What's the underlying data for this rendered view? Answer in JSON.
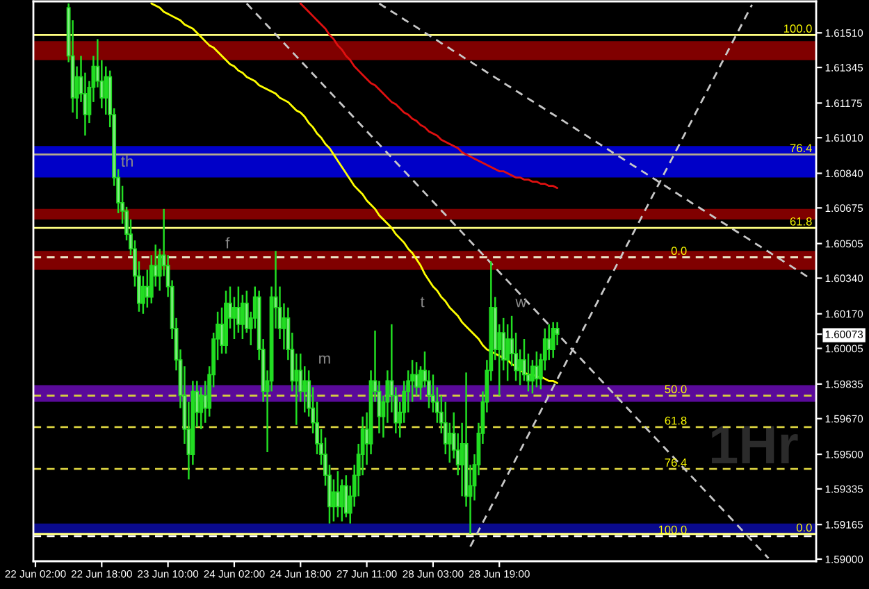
{
  "chart_data": {
    "type": "candlestick",
    "categories": [
      "22 Jun 02:00",
      null,
      null,
      null,
      null,
      null,
      null,
      null,
      null,
      null,
      null,
      null,
      null,
      null,
      null,
      null,
      "22 Jun 18:00",
      null,
      null,
      null,
      null,
      null,
      null,
      null,
      null,
      null,
      null,
      null,
      null,
      null,
      null,
      null,
      "23 Jun 10:00",
      null,
      null,
      null,
      null,
      null,
      null,
      null,
      null,
      null,
      null,
      null,
      null,
      null,
      null,
      null,
      "24 Jun 02:00",
      null,
      null,
      null,
      null,
      null,
      null,
      null,
      null,
      null,
      null,
      null,
      null,
      null,
      null,
      null,
      "24 Jun 18:00",
      null,
      null,
      null,
      null,
      null,
      null,
      null,
      null,
      null,
      null,
      null,
      null,
      null,
      null,
      null,
      "27 Jun 11:00",
      null,
      null,
      null,
      null,
      null,
      null,
      null,
      null,
      null,
      null,
      null,
      null,
      null,
      null,
      null,
      "28 Jun 03:00",
      null,
      null,
      null,
      null,
      null,
      null,
      null,
      null,
      null,
      null,
      null,
      null,
      null,
      null,
      null,
      "28 Jun 19:00",
      null,
      null,
      null,
      null,
      null,
      null,
      null,
      null,
      null,
      null,
      null,
      null,
      null,
      null,
      null,
      null,
      null,
      null,
      null,
      null,
      null,
      null,
      null,
      null,
      null,
      null,
      null,
      null,
      null,
      null,
      null,
      null,
      null,
      null,
      null,
      null,
      null,
      null,
      null,
      null,
      null,
      null,
      null,
      null,
      null,
      null,
      null,
      null,
      null,
      null,
      null,
      null,
      null,
      null,
      null,
      null,
      null,
      null,
      null,
      null,
      null,
      null,
      null,
      null,
      null,
      null,
      null,
      null,
      null,
      null,
      null,
      null,
      null,
      null,
      null,
      null
    ],
    "ylim": [
      1.5899,
      1.6166
    ],
    "yticks": [
      {
        "value": 1.6151,
        "label": "1.61510"
      },
      1.61345,
      1.61175,
      {
        "value": 1.6101,
        "label": "1.61010"
      },
      {
        "value": 1.6084,
        "label": "1.60840"
      },
      1.60675,
      1.60505,
      {
        "value": 1.6034,
        "label": "1.60340"
      },
      {
        "value": 1.6017,
        "label": "1.60170"
      },
      1.60073,
      1.60005,
      1.59835,
      {
        "value": 1.5967,
        "label": "1.59670"
      },
      {
        "value": 1.595,
        "label": "1.59500"
      },
      1.59335,
      1.59165,
      {
        "value": 1.59,
        "label": "1.59000"
      }
    ],
    "series": [
      {
        "color": "#22dd22",
        "ohlc": [
          null,
          null,
          null,
          null,
          null,
          null,
          null,
          null,
          [
            1.6163,
            1.6165,
            1.6137,
            1.614
          ],
          [
            1.614,
            1.6157,
            1.6113,
            1.612
          ],
          [
            1.612,
            1.6135,
            1.611,
            1.613
          ],
          [
            1.613,
            1.614,
            1.6118,
            1.6122
          ],
          [
            1.6122,
            1.6132,
            1.6102,
            1.6112
          ],
          [
            1.6112,
            1.6128,
            1.6108,
            1.6125
          ],
          [
            1.6125,
            1.614,
            1.6118,
            1.6135
          ],
          [
            1.6135,
            1.6148,
            1.6125,
            1.6128
          ],
          [
            1.6128,
            1.6138,
            1.6115,
            1.612
          ],
          [
            1.612,
            1.6135,
            1.6112,
            1.613
          ],
          [
            1.613,
            1.6133,
            1.6106,
            1.6112
          ],
          [
            1.6112,
            1.6115,
            1.6078,
            1.6082
          ],
          [
            1.6082,
            1.6086,
            1.6065,
            1.607
          ],
          [
            1.607,
            1.6078,
            1.606,
            1.6066
          ],
          [
            1.6066,
            1.6068,
            1.6052,
            1.6055
          ],
          [
            1.6055,
            1.6062,
            1.6045,
            1.6048
          ],
          [
            1.6048,
            1.6052,
            1.603,
            1.6035
          ],
          [
            1.6035,
            1.6042,
            1.6018,
            1.6022
          ],
          [
            1.6022,
            1.6035,
            1.6017,
            1.603
          ],
          [
            1.603,
            1.6038,
            1.602,
            1.6025
          ],
          [
            1.6025,
            1.6045,
            1.6022,
            1.604
          ],
          [
            1.604,
            1.605,
            1.603,
            1.6035
          ],
          [
            1.6035,
            1.6048,
            1.6028,
            1.6045
          ],
          [
            1.6045,
            1.6067,
            1.6035,
            1.604
          ],
          [
            1.604,
            1.6045,
            1.6025,
            1.603
          ],
          [
            1.603,
            1.6033,
            1.6005,
            1.601
          ],
          [
            1.601,
            1.6015,
            1.599,
            1.5995
          ],
          [
            1.5995,
            1.6,
            1.5972,
            1.5978
          ],
          [
            1.5978,
            1.5992,
            1.5955,
            1.5962
          ],
          [
            1.5962,
            1.5975,
            1.5938,
            1.595
          ],
          [
            1.595,
            1.5985,
            1.5945,
            1.598
          ],
          [
            1.598,
            1.5985,
            1.5963,
            1.597
          ],
          [
            1.597,
            1.5982,
            1.5962,
            1.5978
          ],
          [
            1.5978,
            1.5985,
            1.5965,
            1.5972
          ],
          [
            1.5972,
            1.5992,
            1.5968,
            1.5988
          ],
          [
            1.5988,
            1.6008,
            1.5982,
            1.6005
          ],
          [
            1.6005,
            1.6018,
            1.5995,
            1.6012
          ],
          [
            1.6012,
            1.602,
            1.5998,
            1.6002
          ],
          [
            1.6002,
            1.6028,
            1.5998,
            1.6022
          ],
          [
            1.6022,
            1.603,
            1.601,
            1.6015
          ],
          [
            1.6015,
            1.6025,
            1.6005,
            1.602
          ],
          [
            1.602,
            1.603,
            1.6008,
            1.6012
          ],
          [
            1.6012,
            1.6026,
            1.6005,
            1.6022
          ],
          [
            1.6022,
            1.6028,
            1.6008,
            1.601
          ],
          [
            1.601,
            1.6018,
            1.6002,
            1.6015
          ],
          [
            1.6015,
            1.603,
            1.601,
            1.6025
          ],
          [
            1.6025,
            1.6028,
            1.5995,
            1.6
          ],
          [
            1.6,
            1.6005,
            1.5975,
            1.598
          ],
          [
            1.598,
            1.599,
            1.5951,
            1.5985
          ],
          [
            1.5985,
            1.603,
            1.598,
            1.6025
          ],
          [
            1.6025,
            1.6047,
            1.601,
            1.602
          ],
          [
            1.602,
            1.603,
            1.6005,
            1.601
          ],
          [
            1.601,
            1.6022,
            1.6,
            1.6015
          ],
          [
            1.6015,
            1.602,
            1.5995,
            1.6
          ],
          [
            1.6,
            1.6008,
            1.598,
            1.5985
          ],
          [
            1.5985,
            1.5998,
            1.5964,
            1.599
          ],
          [
            1.599,
            1.5998,
            1.5975,
            1.598
          ],
          [
            1.598,
            1.5992,
            1.597,
            1.5985
          ],
          [
            1.5985,
            1.599,
            1.5968,
            1.5972
          ],
          [
            1.5972,
            1.5982,
            1.596,
            1.5965
          ],
          [
            1.5965,
            1.5975,
            1.595,
            1.5955
          ],
          [
            1.5955,
            1.5962,
            1.5945,
            1.595
          ],
          [
            1.595,
            1.5958,
            1.5935,
            1.594
          ],
          [
            1.594,
            1.5945,
            1.5917,
            1.5925
          ],
          [
            1.5925,
            1.5938,
            1.5918,
            1.5932
          ],
          [
            1.5932,
            1.5942,
            1.592,
            1.5925
          ],
          [
            1.5925,
            1.5938,
            1.5918,
            1.5935
          ],
          [
            1.5935,
            1.594,
            1.592,
            1.5922
          ],
          [
            1.5922,
            1.5935,
            1.5917,
            1.593
          ],
          [
            1.593,
            1.5945,
            1.5925,
            1.594
          ],
          [
            1.594,
            1.5955,
            1.593,
            1.595
          ],
          [
            1.595,
            1.5968,
            1.594,
            1.5962
          ],
          [
            1.5962,
            1.597,
            1.5945,
            1.5955
          ],
          [
            1.5955,
            1.599,
            1.595,
            1.5985
          ],
          [
            1.5985,
            1.6009,
            1.5975,
            1.598
          ],
          [
            1.598,
            1.5985,
            1.596,
            1.5968
          ],
          [
            1.5968,
            1.5978,
            1.5958,
            1.5975
          ],
          [
            1.5975,
            1.599,
            1.5965,
            1.5985
          ],
          [
            1.5985,
            1.6012,
            1.597,
            1.5978
          ],
          [
            1.5978,
            1.5982,
            1.596,
            1.5965
          ],
          [
            1.5965,
            1.5975,
            1.5958,
            1.597
          ],
          [
            1.597,
            1.5985,
            1.5965,
            1.598
          ],
          [
            1.598,
            1.599,
            1.597,
            1.5985
          ],
          [
            1.5985,
            1.5995,
            1.5975,
            1.5988
          ],
          [
            1.5988,
            1.5994,
            1.5978,
            1.5982
          ],
          [
            1.5982,
            1.5992,
            1.5976,
            1.599
          ],
          [
            1.599,
            1.5999,
            1.5982,
            1.5985
          ],
          [
            1.5985,
            1.599,
            1.5972,
            1.5978
          ],
          [
            1.5978,
            1.5988,
            1.597,
            1.5975
          ],
          [
            1.5975,
            1.5982,
            1.5965,
            1.597
          ],
          [
            1.597,
            1.5978,
            1.596,
            1.5965
          ],
          [
            1.5965,
            1.5975,
            1.595,
            1.5955
          ],
          [
            1.5955,
            1.5965,
            1.5946,
            1.596
          ],
          [
            1.596,
            1.597,
            1.5948,
            1.5952
          ],
          [
            1.5952,
            1.596,
            1.594,
            1.5945
          ],
          [
            1.5945,
            1.5965,
            1.593,
            1.5955
          ],
          [
            1.5955,
            1.5989,
            1.5925,
            1.593
          ],
          [
            1.593,
            1.5945,
            1.5912,
            1.5935
          ],
          [
            1.5935,
            1.595,
            1.5928,
            1.5945
          ],
          [
            1.5945,
            1.5965,
            1.594,
            1.596
          ],
          [
            1.596,
            1.598,
            1.5955,
            1.5975
          ],
          [
            1.5975,
            1.5995,
            1.597,
            1.599
          ],
          [
            1.599,
            1.6042,
            1.5985,
            1.602
          ],
          [
            1.602,
            1.6025,
            1.5995,
            1.6
          ],
          [
            1.6,
            1.6012,
            1.5978,
            1.6008
          ],
          [
            1.6008,
            1.6015,
            1.599,
            1.5995
          ],
          [
            1.5995,
            1.6012,
            1.5985,
            1.6005
          ],
          [
            1.6005,
            1.6016,
            1.5992,
            1.5998
          ],
          [
            1.5998,
            1.6008,
            1.5985,
            1.599
          ],
          [
            1.599,
            1.6,
            1.5983,
            1.5995
          ],
          [
            1.5995,
            1.6005,
            1.5985,
            1.5988
          ],
          [
            1.5988,
            1.5998,
            1.598,
            1.5985
          ],
          [
            1.5985,
            1.5995,
            1.5979,
            1.5992
          ],
          [
            1.5992,
            1.5999,
            1.5982,
            1.5986
          ],
          [
            1.5986,
            1.5998,
            1.5981,
            1.5995
          ],
          [
            1.5995,
            1.601,
            1.599,
            1.6005
          ],
          [
            1.6005,
            1.6012,
            1.5995,
            1.6
          ],
          [
            1.6,
            1.6013,
            1.5996,
            1.601
          ],
          [
            1.601,
            1.6013,
            1.6002,
            1.60073
          ],
          null,
          null,
          null,
          null,
          null,
          null,
          null,
          null,
          null,
          null,
          null,
          null,
          null,
          null,
          null,
          null,
          null,
          null,
          null,
          null,
          null,
          null,
          null,
          null,
          null,
          null,
          null,
          null,
          null,
          null,
          null,
          null,
          null,
          null,
          null,
          null,
          null,
          null,
          null,
          null,
          null,
          null,
          null,
          null,
          null,
          null,
          null,
          null,
          null,
          null,
          null,
          null,
          null,
          null,
          null,
          null,
          null,
          null,
          null,
          null,
          null,
          null
        ]
      },
      {
        "type": "line",
        "color": "#ffff00",
        "values": [
          null,
          null,
          null,
          null,
          null,
          null,
          null,
          null,
          null,
          null,
          null,
          null,
          null,
          null,
          null,
          null,
          null,
          null,
          null,
          null,
          null,
          null,
          null,
          null,
          null,
          null,
          null,
          null,
          1.6165,
          1.6164,
          1.6163,
          1.6161,
          1.616,
          1.6159,
          1.6158,
          1.6157,
          1.6155,
          1.6154,
          1.6153,
          1.6151,
          1.6149,
          1.6147,
          1.6145,
          1.6144,
          1.6142,
          1.614,
          1.6138,
          1.6136,
          1.6135,
          1.6133,
          1.6132,
          1.613,
          1.6129,
          1.6128,
          1.6126,
          1.6125,
          1.6124,
          1.6123,
          1.6122,
          1.612,
          1.6119,
          1.6118,
          1.6116,
          1.6114,
          1.6113,
          1.6111,
          1.6108,
          1.6106,
          1.6103,
          1.6101,
          1.6098,
          1.6096,
          1.6093,
          1.609,
          1.6087,
          1.6084,
          1.6081,
          1.6078,
          1.6076,
          1.6074,
          1.6071,
          1.6069,
          1.6067,
          1.6064,
          1.6062,
          1.606,
          1.6058,
          1.6055,
          1.6053,
          1.6051,
          1.6048,
          1.6046,
          1.6043,
          1.604,
          1.6036,
          1.6033,
          1.603,
          1.6028,
          1.6025,
          1.6023,
          1.602,
          1.6018,
          1.6016,
          1.6013,
          1.6011,
          1.6009,
          1.6007,
          1.6005,
          1.6002,
          1.6,
          1.5999,
          1.5998,
          1.5997,
          1.5996,
          1.5995,
          1.5993,
          1.5992,
          1.599,
          1.5989,
          1.5988,
          1.5988,
          1.5987,
          1.5987,
          1.5986,
          1.5985,
          1.5985,
          1.5984,
          null,
          null,
          null,
          null,
          null,
          null,
          null,
          null,
          null,
          null,
          null,
          null,
          null,
          null,
          null,
          null,
          null,
          null,
          null,
          null,
          null,
          null,
          null,
          null,
          null,
          null,
          null,
          null,
          null,
          null,
          null,
          null,
          null,
          null,
          null,
          null,
          null,
          null,
          null,
          null,
          null,
          null,
          null,
          null,
          null,
          null,
          null,
          null,
          null,
          null,
          null,
          null,
          null,
          null,
          null,
          null,
          null,
          null,
          null,
          null,
          null,
          null
        ]
      },
      {
        "type": "line",
        "color": "#e01010",
        "values": [
          null,
          null,
          null,
          null,
          null,
          null,
          null,
          null,
          null,
          null,
          null,
          null,
          null,
          null,
          null,
          null,
          null,
          null,
          null,
          null,
          null,
          null,
          null,
          null,
          null,
          null,
          null,
          null,
          null,
          null,
          null,
          null,
          null,
          null,
          null,
          null,
          null,
          null,
          null,
          null,
          null,
          null,
          null,
          null,
          null,
          null,
          null,
          null,
          null,
          null,
          null,
          null,
          null,
          null,
          null,
          null,
          null,
          null,
          null,
          null,
          null,
          null,
          null,
          null,
          1.6165,
          1.6163,
          1.6161,
          1.6159,
          1.6157,
          1.6155,
          1.6153,
          1.615,
          1.6148,
          1.6145,
          1.6143,
          1.614,
          1.6138,
          1.6135,
          1.6133,
          1.6131,
          1.6129,
          1.6127,
          1.6126,
          1.6124,
          1.6122,
          1.612,
          1.6118,
          1.6117,
          1.6115,
          1.6113,
          1.6112,
          1.611,
          1.6109,
          1.6107,
          1.6106,
          1.6104,
          1.6103,
          1.6102,
          1.61,
          1.6099,
          1.6098,
          1.6097,
          1.6096,
          1.6094,
          1.6093,
          1.6092,
          1.6091,
          1.609,
          1.6089,
          1.6088,
          1.6087,
          1.6086,
          1.6085,
          1.6085,
          1.6084,
          1.6083,
          1.6082,
          1.6082,
          1.6081,
          1.6081,
          1.608,
          1.608,
          1.6079,
          1.6079,
          1.6078,
          1.6078,
          1.6077,
          null,
          null,
          null,
          null,
          null,
          null,
          null,
          null,
          null,
          null,
          null,
          null,
          null,
          null,
          null,
          null,
          null,
          null,
          null,
          null,
          null,
          null,
          null,
          null,
          null,
          null,
          null,
          null,
          null,
          null,
          null,
          null,
          null,
          null,
          null,
          null,
          null,
          null,
          null,
          null,
          null,
          null,
          null,
          null,
          null,
          null,
          null,
          null,
          null,
          null,
          null,
          null,
          null,
          null,
          null,
          null,
          null,
          null,
          null,
          null,
          null,
          null
        ]
      },
      {
        "type": "line",
        "color": "#c8c8c8",
        "line_style": "dashed",
        "values": [
          null,
          null,
          null,
          null,
          null,
          null,
          null,
          null,
          null,
          null,
          null,
          null,
          null,
          null,
          null,
          null,
          null,
          null,
          null,
          null,
          null,
          null,
          null,
          null,
          null,
          null,
          null,
          null,
          null,
          null,
          null,
          null,
          null,
          null,
          null,
          null,
          null,
          null,
          null,
          null,
          null,
          null,
          null,
          null,
          null,
          null,
          null,
          null,
          null,
          null,
          null,
          1.6165,
          1.61629,
          1.61608,
          1.61587,
          1.61566,
          1.61545,
          1.61524,
          1.61503,
          1.61482,
          1.61461,
          1.6144,
          1.61419,
          1.61398,
          1.61377,
          1.61356,
          1.61335,
          1.61314,
          1.61293,
          1.61272,
          1.61251,
          1.6123,
          1.61209,
          1.61188,
          1.61167,
          1.61146,
          1.61125,
          1.61104,
          1.61083,
          1.61062,
          1.61041,
          1.6102,
          1.60999,
          1.60978,
          1.60957,
          1.60936,
          1.60915,
          1.60894,
          1.60873,
          1.60852,
          1.60831,
          1.6081,
          1.60789,
          1.60768,
          1.60747,
          1.60726,
          1.60705,
          1.60684,
          1.60663,
          1.60642,
          1.60621,
          1.606,
          1.60579,
          1.60558,
          1.60537,
          1.60516,
          1.60495,
          1.60474,
          1.60453,
          1.60432,
          1.60411,
          1.6039,
          1.60369,
          1.60348,
          1.60327,
          1.60306,
          1.60285,
          1.60264,
          1.60243,
          1.60222,
          1.60201,
          1.6018,
          1.60159,
          1.60138,
          1.60117,
          1.60096,
          1.60075,
          1.60054,
          1.60033,
          1.60012,
          1.59991,
          1.5997,
          1.59949,
          1.59928,
          1.59907,
          1.59886,
          1.59865,
          1.59844,
          1.59823,
          1.59802,
          1.59781,
          1.5976,
          1.59739,
          1.59718,
          1.59697,
          1.59676,
          1.59655,
          1.59634,
          1.59613,
          1.59592,
          1.59571,
          1.5955,
          1.59529,
          1.59508,
          1.59487,
          1.59466,
          1.59445,
          1.59424,
          1.59403,
          1.59382,
          1.59361,
          1.5934,
          1.59319,
          1.59298,
          1.59277,
          1.59256,
          1.59235,
          1.59214,
          1.59193,
          1.59172,
          1.59151,
          1.5913,
          1.59109,
          1.59088,
          1.59067,
          1.59046,
          1.59025,
          1.59004,
          null,
          null,
          null,
          null,
          null,
          null,
          null,
          null,
          null,
          null,
          null
        ]
      },
      {
        "type": "line",
        "color": "#c8c8c8",
        "line_style": "dashed",
        "values": [
          null,
          null,
          null,
          null,
          null,
          null,
          null,
          null,
          null,
          null,
          null,
          null,
          null,
          null,
          null,
          null,
          null,
          null,
          null,
          null,
          null,
          null,
          null,
          null,
          null,
          null,
          null,
          null,
          null,
          null,
          null,
          null,
          null,
          null,
          null,
          null,
          null,
          null,
          null,
          null,
          null,
          null,
          null,
          null,
          null,
          null,
          null,
          null,
          null,
          null,
          null,
          null,
          null,
          null,
          null,
          null,
          null,
          null,
          null,
          null,
          null,
          null,
          null,
          null,
          null,
          null,
          null,
          null,
          null,
          null,
          null,
          null,
          null,
          null,
          null,
          null,
          null,
          null,
          null,
          null,
          null,
          null,
          null,
          1.6165,
          1.61637,
          1.61625,
          1.61612,
          1.616,
          1.61587,
          1.61574,
          1.61562,
          1.61549,
          1.61537,
          1.61524,
          1.61511,
          1.61499,
          1.61486,
          1.61474,
          1.61461,
          1.61448,
          1.61436,
          1.61423,
          1.61411,
          1.61398,
          1.61385,
          1.61373,
          1.6136,
          1.61348,
          1.61335,
          1.61322,
          1.6131,
          1.61297,
          1.61285,
          1.61272,
          1.61259,
          1.61247,
          1.61234,
          1.61222,
          1.61209,
          1.61196,
          1.61184,
          1.61171,
          1.61159,
          1.61146,
          1.61133,
          1.61121,
          1.61108,
          1.61096,
          1.61083,
          1.6107,
          1.61058,
          1.61045,
          1.61033,
          1.6102,
          1.61007,
          1.60995,
          1.60982,
          1.6097,
          1.60957,
          1.60944,
          1.60932,
          1.60919,
          1.60907,
          1.60894,
          1.60881,
          1.60869,
          1.60856,
          1.60844,
          1.60831,
          1.60818,
          1.60806,
          1.60793,
          1.60781,
          1.60768,
          1.60755,
          1.60743,
          1.6073,
          1.60718,
          1.60705,
          1.60692,
          1.6068,
          1.60667,
          1.60655,
          1.60642,
          1.60629,
          1.60617,
          1.60604,
          1.60592,
          1.60579,
          1.60566,
          1.60554,
          1.60541,
          1.60529,
          1.60516,
          1.60503,
          1.60491,
          1.60478,
          1.60466,
          1.60453,
          1.6044,
          1.60428,
          1.60415,
          1.60403,
          1.6039,
          1.60377,
          1.60365,
          1.60352,
          1.6034,
          null
        ]
      },
      {
        "type": "line",
        "color": "#c8c8c8",
        "line_style": "dashed",
        "values": [
          null,
          null,
          null,
          null,
          null,
          null,
          null,
          null,
          null,
          null,
          null,
          null,
          null,
          null,
          null,
          null,
          null,
          null,
          null,
          null,
          null,
          null,
          null,
          null,
          null,
          null,
          null,
          null,
          null,
          null,
          null,
          null,
          null,
          null,
          null,
          null,
          null,
          null,
          null,
          null,
          null,
          null,
          null,
          null,
          null,
          null,
          null,
          null,
          null,
          null,
          null,
          null,
          null,
          null,
          null,
          null,
          null,
          null,
          null,
          null,
          null,
          null,
          null,
          null,
          null,
          null,
          null,
          null,
          null,
          null,
          null,
          null,
          null,
          null,
          null,
          null,
          null,
          null,
          null,
          null,
          null,
          null,
          null,
          null,
          null,
          null,
          null,
          null,
          null,
          null,
          null,
          null,
          null,
          null,
          null,
          null,
          null,
          null,
          null,
          null,
          null,
          null,
          null,
          null,
          null,
          1.5906,
          1.59098,
          1.59136,
          1.59174,
          1.59212,
          1.5925,
          1.59288,
          1.59326,
          1.59364,
          1.59402,
          1.5944,
          1.59478,
          1.59516,
          1.59554,
          1.59592,
          1.5963,
          1.59668,
          1.59706,
          1.59744,
          1.59782,
          1.5982,
          1.59858,
          1.59896,
          1.59934,
          1.59972,
          1.6001,
          1.60048,
          1.60086,
          1.60124,
          1.60162,
          1.602,
          1.60238,
          1.60276,
          1.60314,
          1.60352,
          1.6039,
          1.60428,
          1.60466,
          1.60504,
          1.60542,
          1.6058,
          1.60618,
          1.60656,
          1.60694,
          1.60732,
          1.6077,
          1.60808,
          1.60846,
          1.60884,
          1.60922,
          1.6096,
          1.60998,
          1.61036,
          1.61074,
          1.61112,
          1.6115,
          1.61188,
          1.61226,
          1.61264,
          1.61302,
          1.6134,
          1.61378,
          1.61416,
          1.61454,
          1.61492,
          1.6153,
          1.61568,
          1.61606,
          1.61644,
          null,
          null,
          null,
          null,
          null,
          null,
          null,
          null,
          null,
          null,
          null,
          null,
          null,
          null,
          null
        ]
      }
    ],
    "bands": [
      {
        "axis": "y",
        "from": 1.6138,
        "to": 1.6147,
        "color": "#800000"
      },
      {
        "axis": "y",
        "from": 1.6082,
        "to": 1.6097,
        "color": "#0000c8"
      },
      {
        "axis": "y",
        "from": 1.6062,
        "to": 1.6067,
        "color": "#800000"
      },
      {
        "axis": "y",
        "from": 1.6038,
        "to": 1.6047,
        "color": "#800000"
      },
      {
        "axis": "y",
        "from": 1.5975,
        "to": 1.5983,
        "color": "#5a0a9a"
      },
      {
        "axis": "y",
        "from": 1.5912,
        "to": 1.5917,
        "color": "#0a0a8c"
      }
    ],
    "ref_lines": [
      {
        "axis": "y",
        "value": 1.615,
        "color": "#ffff80",
        "line_style": "solid"
      },
      {
        "axis": "y",
        "value": 1.6093,
        "color": "#b4aa8c",
        "line_style": "solid"
      },
      {
        "axis": "y",
        "value": 1.6058,
        "color": "#ffff80",
        "line_style": "solid"
      },
      {
        "axis": "y",
        "value": 1.6044,
        "color": "#f0f0d0",
        "line_style": "dashed"
      },
      {
        "axis": "y",
        "value": 1.5978,
        "color": "#d8d040",
        "line_style": "dashed"
      },
      {
        "axis": "y",
        "value": 1.5963,
        "color": "#d8d040",
        "line_style": "dashed"
      },
      {
        "axis": "y",
        "value": 1.5943,
        "color": "#d8d040",
        "line_style": "dashed"
      },
      {
        "axis": "y",
        "value": 1.5911,
        "color": "#ffffff",
        "line_style": "dashed"
      },
      {
        "axis": "y",
        "value": 1.5912,
        "color": "#ffff80",
        "line_style": "solid"
      }
    ],
    "annotations": [
      "th",
      "f",
      "m",
      "t",
      "w",
      "1Hr",
      {
        "text": "100.0",
        "y": 1.615
      },
      {
        "text": "76.4",
        "y": 1.6093
      },
      {
        "text": "61.8",
        "y": 1.6058
      },
      {
        "text": "0.0",
        "y": 1.6044
      },
      {
        "text": "50.0",
        "y": 1.5978
      },
      {
        "text": "61.8",
        "y": 1.5963
      },
      {
        "text": "76.4",
        "y": 1.5943
      },
      {
        "text": "100.0",
        "y": 1.5911
      },
      {
        "text": "0.0",
        "y": 1.5912
      }
    ]
  }
}
